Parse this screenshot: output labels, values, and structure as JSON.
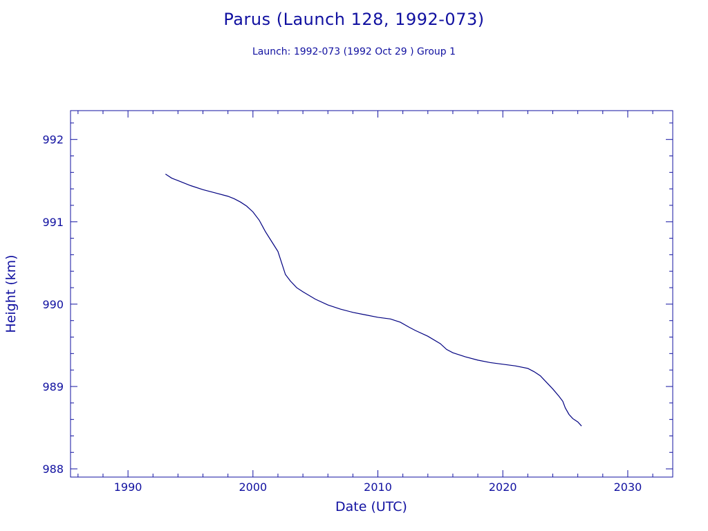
{
  "chart_data": {
    "type": "line",
    "title": "Parus (Launch 128, 1992-073)",
    "subtitle": "Launch: 1992-073  (1992 Oct 29 )  Group 1",
    "xlabel": "Date (UTC)",
    "ylabel": "Height (km)",
    "xlim": [
      1985.4,
      2033.6
    ],
    "ylim": [
      987.9,
      992.35
    ],
    "xticks": [
      1990,
      2000,
      2010,
      2020,
      2030
    ],
    "yticks": [
      988,
      989,
      990,
      991,
      992
    ],
    "grid": false,
    "colors": {
      "line": "#000080",
      "axes": "#1010a0",
      "text": "#1010a0"
    },
    "series": [
      {
        "x": [
          1993.0,
          1993.5,
          1994.0,
          1995.0,
          1996.0,
          1997.0,
          1998.0,
          1998.5,
          1999.0,
          1999.5,
          2000.0,
          2000.5,
          2001.0,
          2001.5,
          2002.0,
          2002.3,
          2002.6,
          2003.0,
          2003.5,
          2004.0,
          2005.0,
          2006.0,
          2007.0,
          2008.0,
          2009.0,
          2010.0,
          2011.0,
          2011.8,
          2012.5,
          2013.0,
          2014.0,
          2015.0,
          2015.5,
          2016.0,
          2017.0,
          2018.0,
          2019.0,
          2020.0,
          2021.0,
          2022.0,
          2022.5,
          2023.0,
          2023.5,
          2024.0,
          2024.5,
          2024.8,
          2025.0,
          2025.3,
          2025.6,
          2026.0,
          2026.3
        ],
        "y": [
          991.58,
          991.53,
          991.5,
          991.44,
          991.39,
          991.35,
          991.31,
          991.28,
          991.24,
          991.19,
          991.12,
          991.02,
          990.88,
          990.76,
          990.64,
          990.5,
          990.36,
          990.28,
          990.2,
          990.15,
          990.06,
          989.99,
          989.94,
          989.9,
          989.87,
          989.84,
          989.82,
          989.78,
          989.72,
          989.68,
          989.61,
          989.52,
          989.45,
          989.41,
          989.36,
          989.32,
          989.29,
          989.27,
          989.25,
          989.22,
          989.18,
          989.13,
          989.05,
          988.97,
          988.88,
          988.82,
          988.74,
          988.66,
          988.61,
          988.57,
          988.52
        ]
      }
    ]
  }
}
